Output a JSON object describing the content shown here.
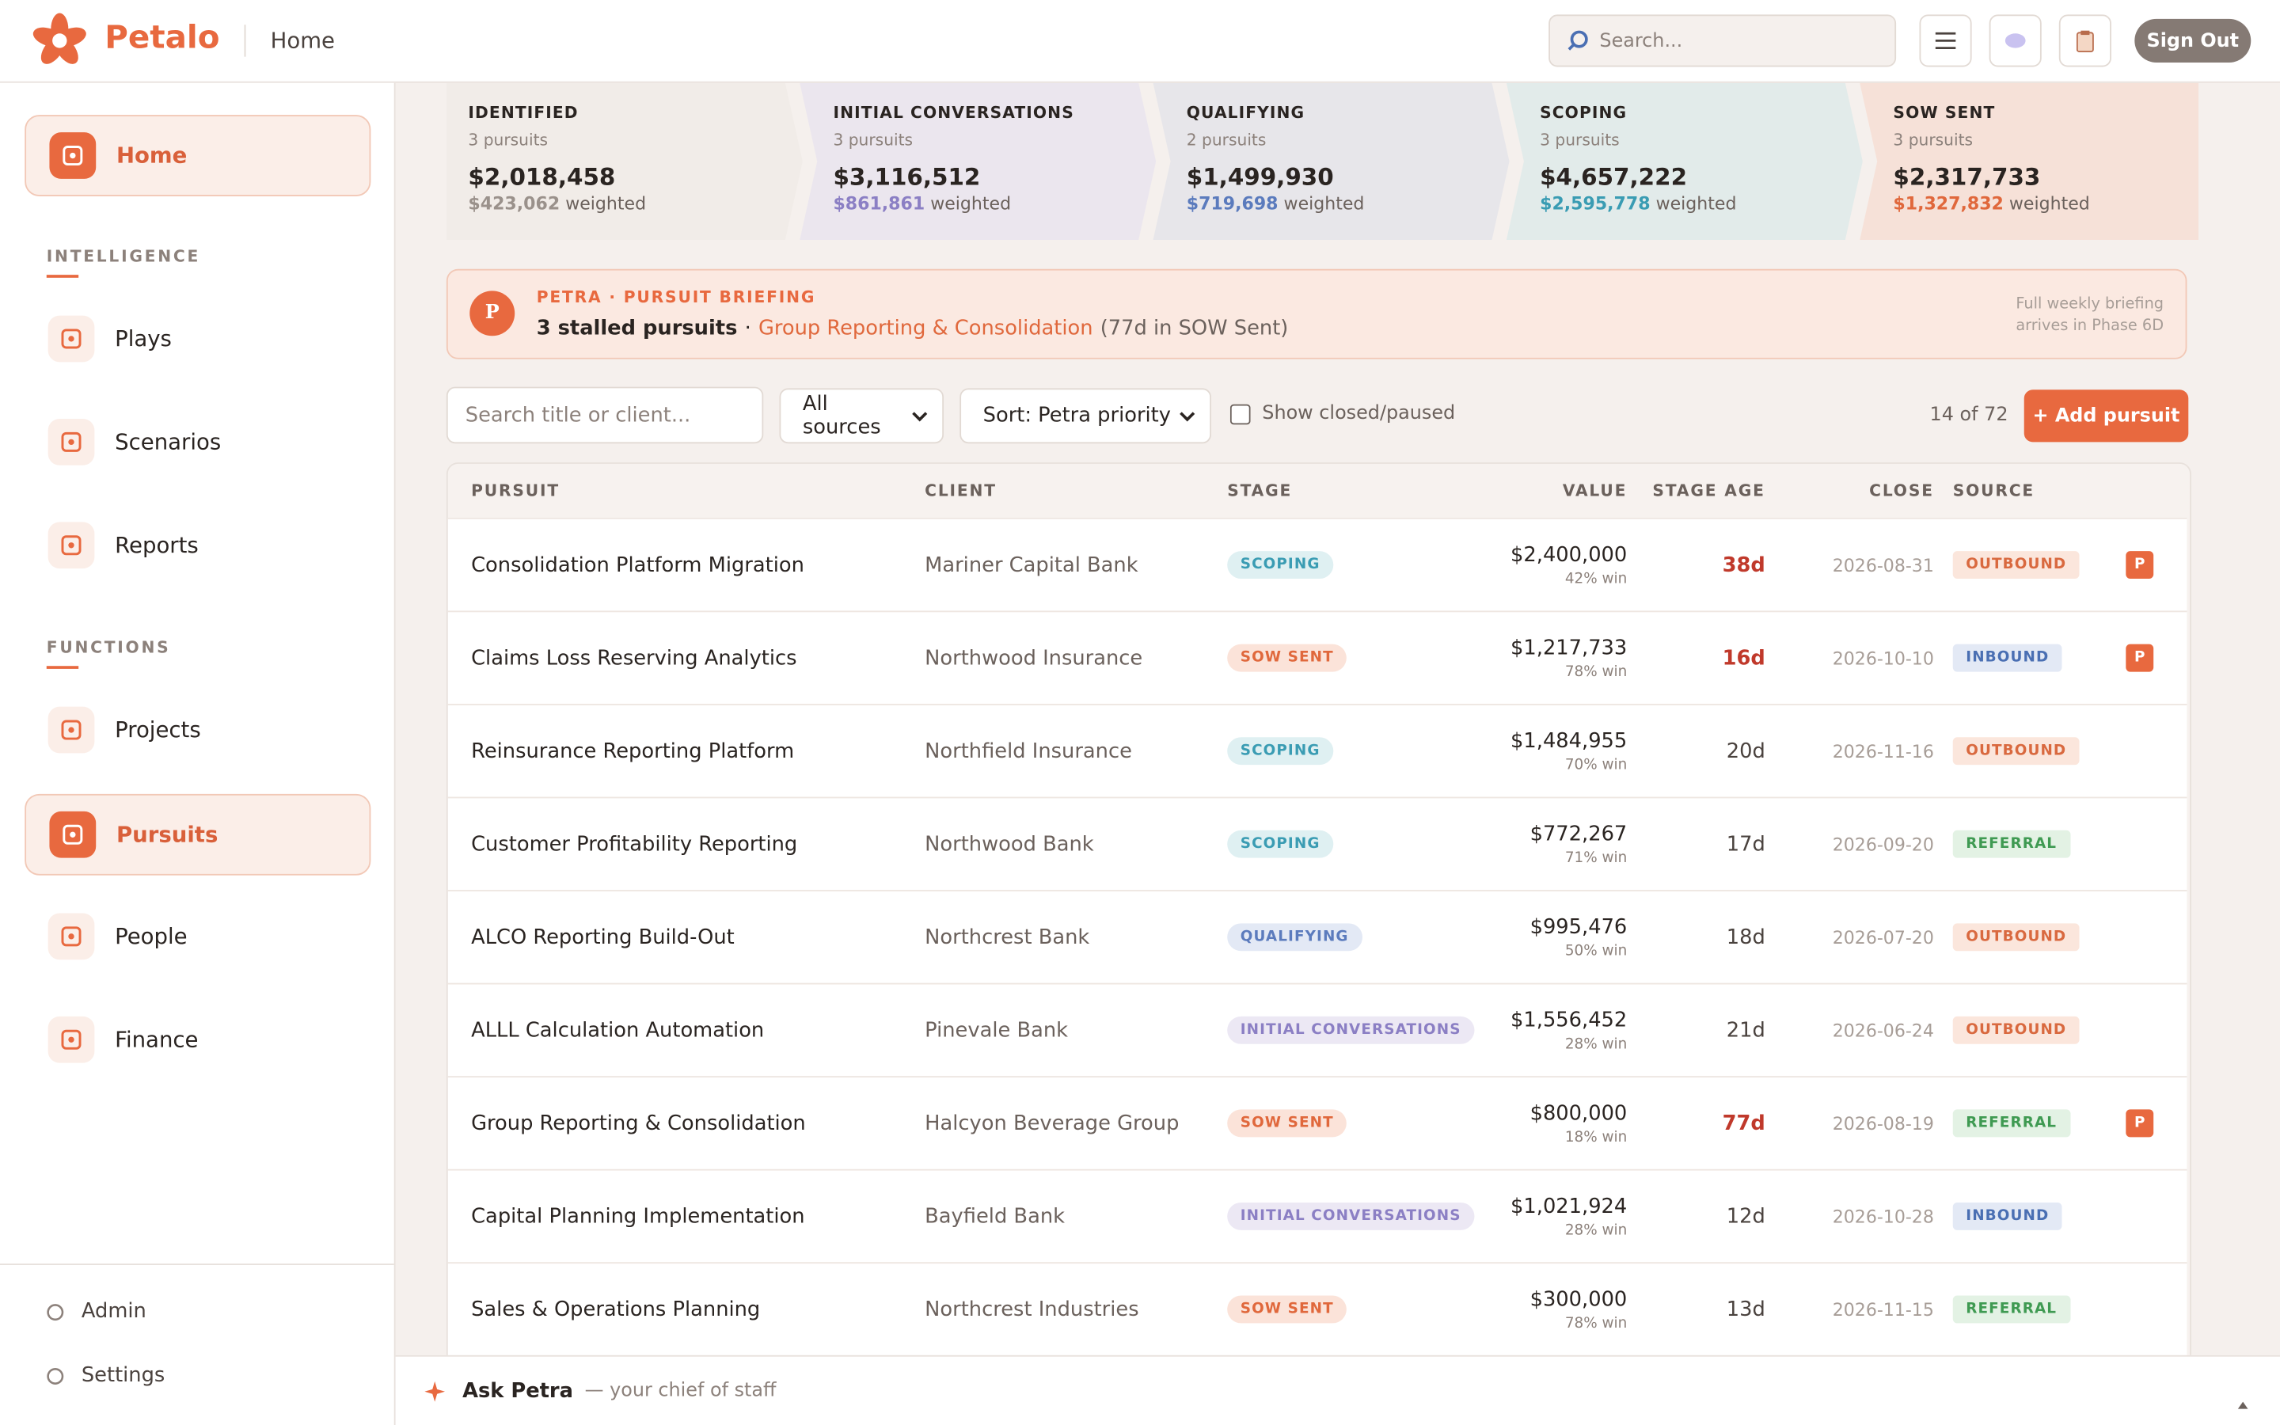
{
  "header": {
    "brand": "Petalo",
    "page": "Home",
    "search_placeholder": "Search...",
    "sign_out": "Sign Out"
  },
  "sidebar": {
    "home": "Home",
    "groups": [
      {
        "title": "INTELLIGENCE",
        "items": [
          "Plays",
          "Scenarios",
          "Reports"
        ]
      },
      {
        "title": "FUNCTIONS",
        "items": [
          "Projects",
          "Pursuits",
          "People",
          "Finance"
        ]
      }
    ],
    "active": "Pursuits",
    "footer": [
      "Admin",
      "Settings"
    ]
  },
  "stages": [
    {
      "name": "IDENTIFIED",
      "count": "3 pursuits",
      "value": "$2,018,458",
      "weighted": "$423,062",
      "card": "#f1ece8",
      "color": "#9a918b",
      "tint": "#eeeae6"
    },
    {
      "name": "INITIAL CONVERSATIONS",
      "count": "3 pursuits",
      "value": "$3,116,512",
      "weighted": "$861,861",
      "card": "#ebe6ee",
      "color": "#8b7fc4",
      "tint": "#ece8f4"
    },
    {
      "name": "QUALIFYING",
      "count": "2 pursuits",
      "value": "$1,499,930",
      "weighted": "$719,698",
      "card": "#e7e6ea",
      "color": "#5b7bbd",
      "tint": "#e3e9f5"
    },
    {
      "name": "SCOPING",
      "count": "3 pursuits",
      "value": "$4,657,222",
      "weighted": "$2,595,778",
      "card": "#e2ebea",
      "color": "#3a9cb3",
      "tint": "#dff0f2"
    },
    {
      "name": "SOW SENT",
      "count": "3 pursuits",
      "value": "$2,317,733",
      "weighted": "$1,327,832",
      "card": "#f6e1d8",
      "color": "#e0683c",
      "tint": "#fbe3d9"
    }
  ],
  "weighted_label": "weighted",
  "briefing": {
    "avatar": "P",
    "label": "PETRA · PURSUIT BRIEFING",
    "headline": "3 stalled pursuits",
    "separator": "·",
    "link": "Group Reporting & Consolidation",
    "detail": "(77d in SOW Sent)",
    "note": "Full weekly briefing arrives in Phase 6D"
  },
  "filters": {
    "search_placeholder": "Search title or client...",
    "source": "All sources",
    "sort": "Sort: Petra priority",
    "show_closed": "Show closed/paused",
    "count": "14 of 72",
    "add": "+ Add pursuit"
  },
  "table": {
    "columns": [
      "PURSUIT",
      "CLIENT",
      "STAGE",
      "VALUE",
      "STAGE AGE",
      "CLOSE",
      "SOURCE"
    ],
    "source_colors": {
      "OUTBOUND": [
        "#fbe6dc",
        "#d9693f"
      ],
      "INBOUND": [
        "#e3e9f5",
        "#4a6fb3"
      ],
      "REFERRAL": [
        "#e3f2e4",
        "#3f9a52"
      ]
    },
    "rows": [
      {
        "pursuit": "Consolidation Platform Migration",
        "client": "Mariner Capital Bank",
        "stage": "SCOPING",
        "value": "$2,400,000",
        "win": "42% win",
        "age": "38d",
        "close": "2026-08-31",
        "source": "OUTBOUND",
        "flag": "P"
      },
      {
        "pursuit": "Claims Loss Reserving Analytics",
        "client": "Northwood Insurance",
        "stage": "SOW SENT",
        "value": "$1,217,733",
        "win": "78% win",
        "age": "16d",
        "close": "2026-10-10",
        "source": "INBOUND",
        "flag": "P"
      },
      {
        "pursuit": "Reinsurance Reporting Platform",
        "client": "Northfield Insurance",
        "stage": "SCOPING",
        "value": "$1,484,955",
        "win": "70% win",
        "age": "20d",
        "close": "2026-11-16",
        "source": "OUTBOUND"
      },
      {
        "pursuit": "Customer Profitability Reporting",
        "client": "Northwood Bank",
        "stage": "SCOPING",
        "value": "$772,267",
        "win": "71% win",
        "age": "17d",
        "close": "2026-09-20",
        "source": "REFERRAL"
      },
      {
        "pursuit": "ALCO Reporting Build-Out",
        "client": "Northcrest Bank",
        "stage": "QUALIFYING",
        "value": "$995,476",
        "win": "50% win",
        "age": "18d",
        "close": "2026-07-20",
        "source": "OUTBOUND"
      },
      {
        "pursuit": "ALLL Calculation Automation",
        "client": "Pinevale Bank",
        "stage": "INITIAL CONVERSATIONS",
        "value": "$1,556,452",
        "win": "28% win",
        "age": "21d",
        "close": "2026-06-24",
        "source": "OUTBOUND"
      },
      {
        "pursuit": "Group Reporting & Consolidation",
        "client": "Halcyon Beverage Group",
        "stage": "SOW SENT",
        "value": "$800,000",
        "win": "18% win",
        "age": "77d",
        "close": "2026-08-19",
        "source": "REFERRAL",
        "flag": "P"
      },
      {
        "pursuit": "Capital Planning Implementation",
        "client": "Bayfield Bank",
        "stage": "INITIAL CONVERSATIONS",
        "value": "$1,021,924",
        "win": "28% win",
        "age": "12d",
        "close": "2026-10-28",
        "source": "INBOUND"
      },
      {
        "pursuit": "Sales & Operations Planning",
        "client": "Northcrest Industries",
        "stage": "SOW SENT",
        "value": "$300,000",
        "win": "78% win",
        "age": "13d",
        "close": "2026-11-15",
        "source": "REFERRAL"
      }
    ]
  },
  "assistant": {
    "name": "Ask Petra",
    "tagline": "— your chief of staff"
  }
}
